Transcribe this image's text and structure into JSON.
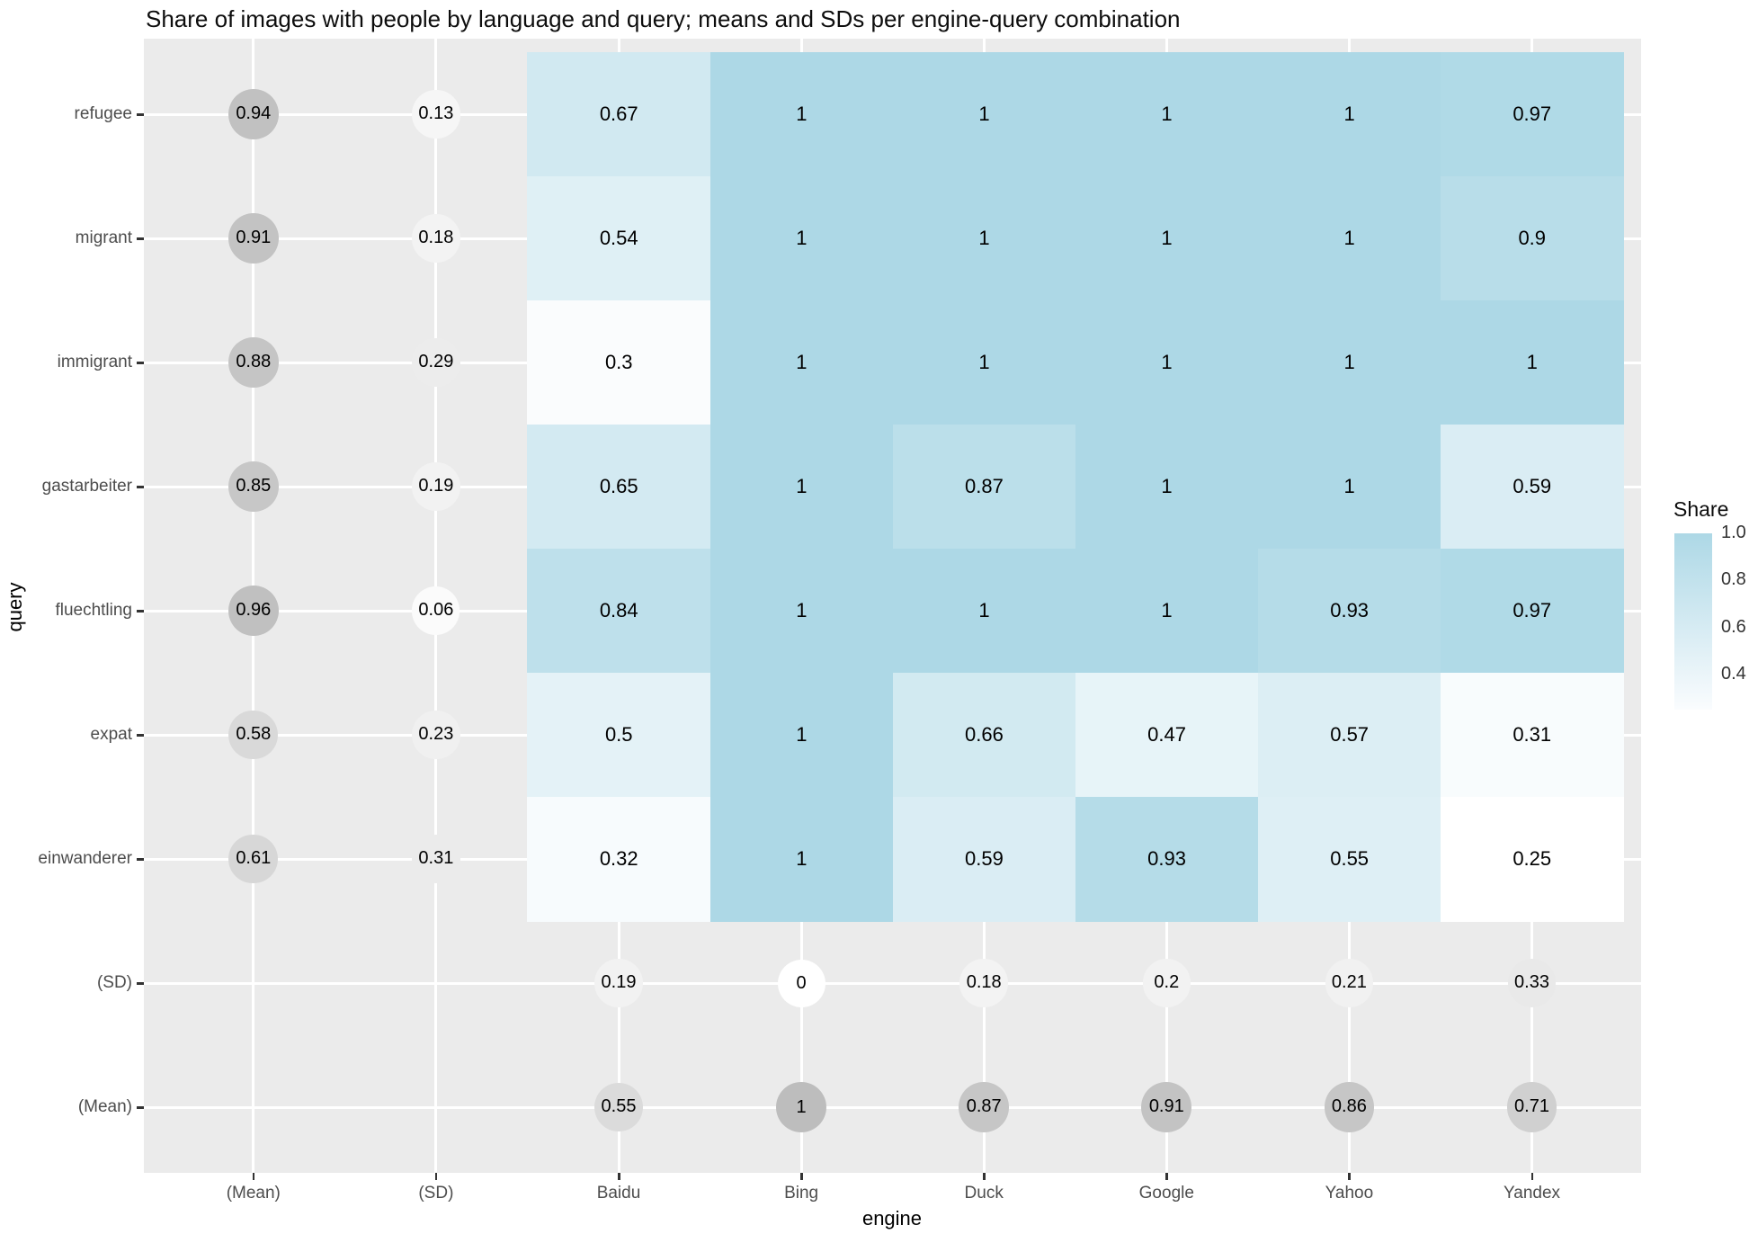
{
  "chart_data": {
    "type": "heatmap",
    "title": "Share of images with people by language and query; means and SDs per engine-query combination",
    "xlabel": "engine",
    "ylabel": "query",
    "x_axis_categories": [
      "(Mean)",
      "(SD)",
      "Baidu",
      "Bing",
      "Duck",
      "Google",
      "Yahoo",
      "Yandex"
    ],
    "y_axis_categories": [
      "refugee",
      "migrant",
      "immigrant",
      "gastarbeiter",
      "fluechtling",
      "expat",
      "einwanderer",
      "(SD)",
      "(Mean)"
    ],
    "heatmap": {
      "queries": [
        "refugee",
        "migrant",
        "immigrant",
        "gastarbeiter",
        "fluechtling",
        "expat",
        "einwanderer"
      ],
      "engines": [
        "Baidu",
        "Bing",
        "Duck",
        "Google",
        "Yahoo",
        "Yandex"
      ],
      "values": [
        [
          "0.67",
          "1",
          "1",
          "1",
          "1",
          "0.97"
        ],
        [
          "0.54",
          "1",
          "1",
          "1",
          "1",
          "0.9"
        ],
        [
          "0.3",
          "1",
          "1",
          "1",
          "1",
          "1"
        ],
        [
          "0.65",
          "1",
          "0.87",
          "1",
          "1",
          "0.59"
        ],
        [
          "0.84",
          "1",
          "1",
          "1",
          "0.93",
          "0.97"
        ],
        [
          "0.5",
          "1",
          "0.66",
          "0.47",
          "0.57",
          "0.31"
        ],
        [
          "0.32",
          "1",
          "0.59",
          "0.93",
          "0.55",
          "0.25"
        ]
      ]
    },
    "query_mean_circles": [
      "0.94",
      "0.91",
      "0.88",
      "0.85",
      "0.96",
      "0.58",
      "0.61"
    ],
    "query_sd_circles": [
      "0.13",
      "0.18",
      "0.29",
      "0.19",
      "0.06",
      "0.23",
      "0.31"
    ],
    "engine_sd_circles": [
      "0.19",
      "0",
      "0.18",
      "0.2",
      "0.21",
      "0.33"
    ],
    "engine_mean_circles": [
      "0.55",
      "1",
      "0.87",
      "0.91",
      "0.86",
      "0.71"
    ],
    "legend": {
      "title": "Share",
      "tick_labels": [
        "1.0",
        "0.8",
        "0.6",
        "0.4"
      ],
      "domain": [
        0.25,
        1
      ]
    },
    "colors": {
      "panel_bg": "#EBEBEB",
      "gridline": "#FFFFFF",
      "tile_low": "#FFFFFF",
      "tile_high": "#ADD8E6",
      "circle_low": "#FFFFFF",
      "circle_high": "#BDBDBD",
      "axis_text": "#4D4D4D"
    }
  }
}
